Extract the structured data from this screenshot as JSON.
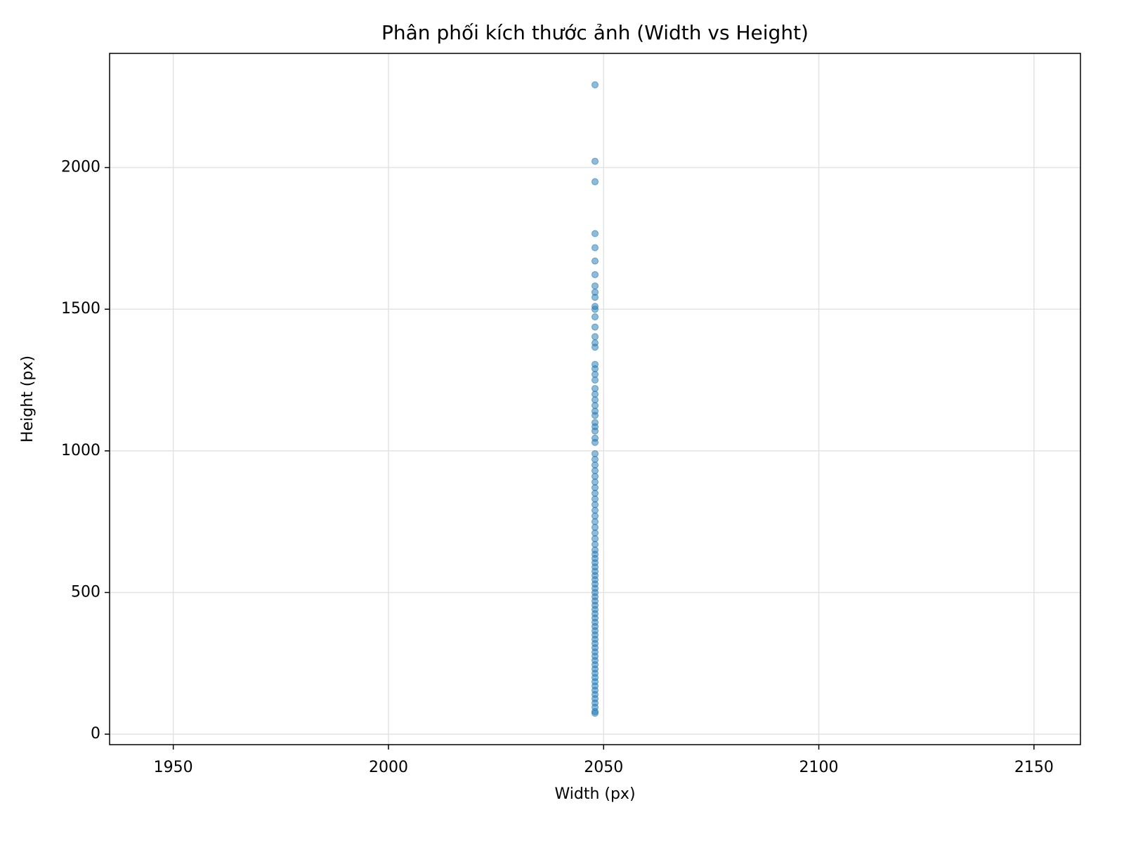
{
  "chart_data": {
    "type": "scatter",
    "title": "Phân phối kích thước ảnh (Width vs Height)",
    "x_label": "Width (px)",
    "y_label": "Height (px)",
    "color": "#1f77b4",
    "grid": true,
    "xlim": [
      1935.2,
      2160.8
    ],
    "ylim": [
      -37,
      2403
    ],
    "xticks": [
      1950,
      2000,
      2050,
      2100,
      2150
    ],
    "yticks": [
      0,
      500,
      1000,
      1500,
      2000
    ],
    "x": [
      2048,
      2048,
      2048,
      2048,
      2048,
      2048,
      2048,
      2048,
      2048,
      2048,
      2048,
      2048,
      2048,
      2048,
      2048,
      2048,
      2048,
      2048,
      2048,
      2048,
      2048,
      2048,
      2048,
      2048,
      2048,
      2048,
      2048,
      2048,
      2048,
      2048,
      2048,
      2048,
      2048,
      2048,
      2048,
      2048,
      2048,
      2048,
      2048,
      2048,
      2048,
      2048,
      2048,
      2048,
      2048,
      2048,
      2048,
      2048,
      2048,
      2048,
      2048,
      2048,
      2048,
      2048,
      2048,
      2048,
      2048,
      2048,
      2048,
      2048,
      2048,
      2048,
      2048,
      2048,
      2048,
      2048,
      2048,
      2048,
      2048,
      2048,
      2048,
      2048,
      2048,
      2048,
      2048,
      2048,
      2048,
      2048,
      2048,
      2048,
      2048,
      2048,
      2048,
      2048,
      2048,
      2048,
      2048,
      2048,
      2048
    ],
    "y": [
      2292,
      2022,
      1950,
      1767,
      1717,
      1670,
      1622,
      1582,
      1560,
      1542,
      1510,
      1500,
      1473,
      1437,
      1403,
      1381,
      1366,
      1305,
      1290,
      1270,
      1250,
      1220,
      1200,
      1180,
      1160,
      1140,
      1125,
      1100,
      1085,
      1070,
      1045,
      1030,
      990,
      970,
      950,
      930,
      910,
      890,
      870,
      850,
      830,
      810,
      790,
      770,
      750,
      730,
      710,
      690,
      670,
      650,
      635,
      620,
      605,
      590,
      575,
      560,
      545,
      530,
      515,
      500,
      485,
      470,
      455,
      440,
      425,
      410,
      395,
      380,
      365,
      350,
      335,
      320,
      305,
      290,
      275,
      260,
      245,
      230,
      215,
      200,
      185,
      170,
      155,
      140,
      125,
      110,
      95,
      80,
      74
    ]
  }
}
